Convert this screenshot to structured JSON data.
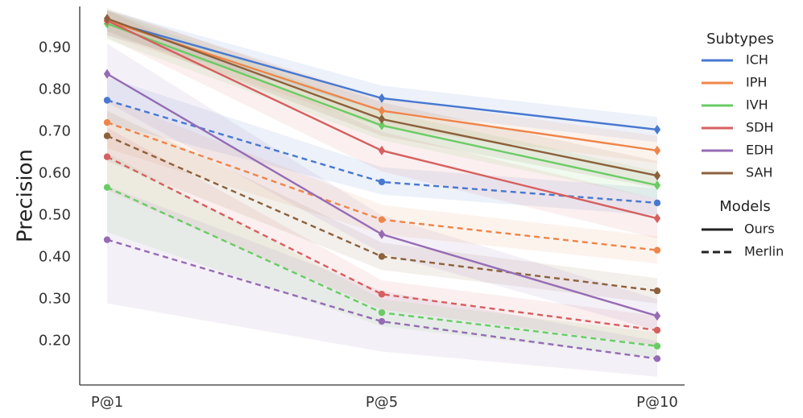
{
  "chart_data": {
    "type": "line",
    "title": "",
    "xlabel": "",
    "ylabel": "Precision",
    "categories": [
      "P@1",
      "P@5",
      "P@10"
    ],
    "ylim": [
      0.1,
      0.98
    ],
    "yticks": [
      0.2,
      0.3,
      0.4,
      0.5,
      0.6,
      0.7,
      0.8,
      0.9
    ],
    "ytick_labels": [
      "0.20",
      "0.30",
      "0.40",
      "0.50",
      "0.60",
      "0.70",
      "0.80",
      "0.90"
    ],
    "grid": false,
    "legend": {
      "position": "right",
      "subtypes_title": "Subtypes",
      "models_title": "Models",
      "subtypes": [
        {
          "name": "ICH",
          "color": "#4878d0"
        },
        {
          "name": "IPH",
          "color": "#ee854a"
        },
        {
          "name": "IVH",
          "color": "#6acc64"
        },
        {
          "name": "SDH",
          "color": "#d65f5f"
        },
        {
          "name": "EDH",
          "color": "#956cb4"
        },
        {
          "name": "SAH",
          "color": "#8c613c"
        }
      ],
      "models": [
        {
          "name": "Ours",
          "style": "solid",
          "marker": "diamond"
        },
        {
          "name": "Merlin",
          "style": "dashed",
          "marker": "circle"
        }
      ]
    },
    "series": [
      {
        "name": "ICH",
        "model": "Ours",
        "color": "#4878d0",
        "values": [
          0.965,
          0.78,
          0.705
        ],
        "lower": [
          0.93,
          0.75,
          0.675
        ],
        "upper": [
          0.99,
          0.81,
          0.735
        ]
      },
      {
        "name": "IPH",
        "model": "Ours",
        "color": "#ee854a",
        "values": [
          0.965,
          0.75,
          0.655
        ],
        "lower": [
          0.93,
          0.71,
          0.625
        ],
        "upper": [
          0.99,
          0.78,
          0.69
        ]
      },
      {
        "name": "IVH",
        "model": "Ours",
        "color": "#6acc64",
        "values": [
          0.958,
          0.715,
          0.572
        ],
        "lower": [
          0.92,
          0.68,
          0.54
        ],
        "upper": [
          0.99,
          0.75,
          0.605
        ]
      },
      {
        "name": "SDH",
        "model": "Ours",
        "color": "#d65f5f",
        "values": [
          0.965,
          0.655,
          0.493
        ],
        "lower": [
          0.925,
          0.605,
          0.445
        ],
        "upper": [
          0.99,
          0.7,
          0.54
        ]
      },
      {
        "name": "EDH",
        "model": "Ours",
        "color": "#956cb4",
        "values": [
          0.838,
          0.455,
          0.26
        ],
        "lower": [
          0.77,
          0.41,
          0.225
        ],
        "upper": [
          0.91,
          0.5,
          0.3
        ]
      },
      {
        "name": "SAH",
        "model": "Ours",
        "color": "#8c613c",
        "values": [
          0.97,
          0.73,
          0.595
        ],
        "lower": [
          0.94,
          0.69,
          0.565
        ],
        "upper": [
          0.995,
          0.77,
          0.63
        ]
      },
      {
        "name": "ICH",
        "model": "Merlin",
        "color": "#4878d0",
        "values": [
          0.775,
          0.58,
          0.53
        ],
        "lower": [
          0.72,
          0.55,
          0.5
        ],
        "upper": [
          0.83,
          0.615,
          0.565
        ]
      },
      {
        "name": "IPH",
        "model": "Merlin",
        "color": "#ee854a",
        "values": [
          0.722,
          0.49,
          0.417
        ],
        "lower": [
          0.66,
          0.455,
          0.385
        ],
        "upper": [
          0.78,
          0.525,
          0.45
        ]
      },
      {
        "name": "IVH",
        "model": "Merlin",
        "color": "#6acc64",
        "values": [
          0.567,
          0.268,
          0.188
        ],
        "lower": [
          0.46,
          0.235,
          0.16
        ],
        "upper": [
          0.65,
          0.3,
          0.22
        ]
      },
      {
        "name": "SDH",
        "model": "Merlin",
        "color": "#d65f5f",
        "values": [
          0.64,
          0.312,
          0.226
        ],
        "lower": [
          0.56,
          0.275,
          0.19
        ],
        "upper": [
          0.71,
          0.345,
          0.26
        ]
      },
      {
        "name": "EDH",
        "model": "Merlin",
        "color": "#956cb4",
        "values": [
          0.442,
          0.247,
          0.158
        ],
        "lower": [
          0.29,
          0.175,
          0.115
        ],
        "upper": [
          0.57,
          0.32,
          0.2
        ]
      },
      {
        "name": "SAH",
        "model": "Merlin",
        "color": "#8c613c",
        "values": [
          0.69,
          0.402,
          0.32
        ],
        "lower": [
          0.63,
          0.37,
          0.29
        ],
        "upper": [
          0.75,
          0.435,
          0.35
        ]
      }
    ]
  }
}
